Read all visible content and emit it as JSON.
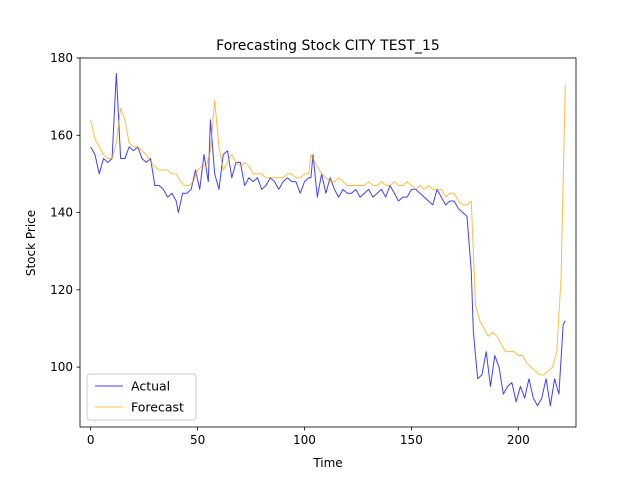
{
  "chart_data": {
    "type": "line",
    "title": "Forecasting Stock CITY TEST_15",
    "xlabel": "Time",
    "ylabel": "Stock Price",
    "xlim": [
      -5,
      227
    ],
    "ylim": [
      84.5,
      180
    ],
    "xticks": [
      0,
      50,
      100,
      150,
      200
    ],
    "yticks": [
      100,
      120,
      140,
      160,
      180
    ],
    "grid": false,
    "legend_position": "lower-left",
    "series": [
      {
        "name": "Actual",
        "color": "#0000ff",
        "x": [
          0,
          2,
          4,
          6,
          8,
          10,
          12,
          14,
          16,
          18,
          20,
          22,
          24,
          26,
          28,
          30,
          32,
          34,
          36,
          38,
          40,
          41,
          43,
          45,
          47,
          49,
          51,
          53,
          55,
          56,
          58,
          60,
          62,
          64,
          66,
          68,
          70,
          72,
          74,
          76,
          78,
          80,
          82,
          84,
          86,
          88,
          90,
          92,
          94,
          96,
          98,
          100,
          102,
          103,
          104,
          106,
          108,
          110,
          112,
          114,
          116,
          118,
          120,
          122,
          124,
          126,
          128,
          130,
          132,
          134,
          136,
          138,
          140,
          142,
          144,
          146,
          148,
          150,
          152,
          154,
          156,
          158,
          160,
          162,
          164,
          166,
          168,
          170,
          172,
          174,
          176,
          178,
          179,
          181,
          183,
          185,
          187,
          189,
          191,
          193,
          195,
          197,
          199,
          201,
          203,
          205,
          207,
          209,
          211,
          213,
          215,
          217,
          219,
          221,
          222
        ],
        "y": [
          157,
          155,
          150,
          154,
          153,
          154,
          176,
          154,
          154,
          157,
          156,
          157,
          154,
          153,
          154,
          147,
          147,
          146,
          144,
          145,
          143,
          140,
          145,
          145,
          146,
          151,
          146,
          155,
          148,
          164,
          150,
          146,
          155,
          156,
          149,
          153,
          153,
          147,
          149,
          148,
          149,
          146,
          147,
          149,
          148,
          146,
          148,
          149,
          148,
          148,
          145,
          148,
          149,
          149,
          155,
          144,
          150,
          145,
          149,
          146,
          144,
          146,
          145,
          145,
          146,
          144,
          145,
          146,
          144,
          145,
          146,
          144,
          147,
          145,
          143,
          144,
          144,
          146,
          146,
          145,
          144,
          143,
          142,
          146,
          144,
          142,
          143,
          143,
          141,
          140,
          139,
          125,
          109,
          97,
          98,
          104,
          95,
          103,
          100,
          93,
          95,
          96,
          91,
          95,
          92,
          97,
          92,
          90,
          92,
          97,
          90,
          97,
          93,
          111,
          112
        ]
      },
      {
        "name": "Forecast",
        "color": "#ffa500",
        "x": [
          0,
          2,
          4,
          6,
          8,
          10,
          12,
          14,
          16,
          18,
          20,
          22,
          24,
          26,
          28,
          30,
          32,
          34,
          36,
          38,
          40,
          42,
          44,
          46,
          48,
          50,
          52,
          54,
          56,
          58,
          60,
          62,
          64,
          66,
          68,
          70,
          72,
          74,
          76,
          78,
          80,
          82,
          84,
          86,
          88,
          90,
          92,
          94,
          96,
          98,
          100,
          102,
          103,
          104,
          106,
          108,
          110,
          112,
          114,
          116,
          118,
          120,
          122,
          124,
          126,
          128,
          130,
          132,
          134,
          136,
          138,
          140,
          142,
          144,
          146,
          148,
          150,
          152,
          154,
          156,
          158,
          160,
          162,
          164,
          166,
          168,
          170,
          172,
          174,
          176,
          178,
          180,
          182,
          184,
          186,
          188,
          190,
          192,
          194,
          196,
          198,
          200,
          202,
          204,
          206,
          208,
          210,
          212,
          214,
          216,
          218,
          220,
          222
        ],
        "y": [
          164,
          159,
          157,
          155,
          154,
          154,
          158,
          167,
          164,
          158,
          157,
          157,
          156,
          155,
          153,
          152,
          151,
          151,
          151,
          150,
          150,
          148,
          147,
          147,
          148,
          151,
          152,
          152,
          156,
          169,
          157,
          151,
          153,
          155,
          153,
          152,
          153,
          152,
          150,
          150,
          150,
          149,
          149,
          149,
          149,
          149,
          150,
          150,
          149,
          149,
          150,
          150,
          155,
          154,
          152,
          150,
          149,
          148,
          148,
          149,
          148,
          147,
          147,
          147,
          147,
          147,
          148,
          147,
          147,
          148,
          147,
          147,
          148,
          147,
          147,
          148,
          147,
          146,
          147,
          146,
          147,
          146,
          146,
          146,
          144,
          145,
          145,
          143,
          142,
          142,
          143,
          116,
          112,
          110,
          108,
          109,
          108,
          106,
          104,
          104,
          104,
          103,
          103,
          101,
          100,
          99,
          98,
          98,
          99,
          100,
          104,
          123,
          173
        ]
      }
    ]
  }
}
